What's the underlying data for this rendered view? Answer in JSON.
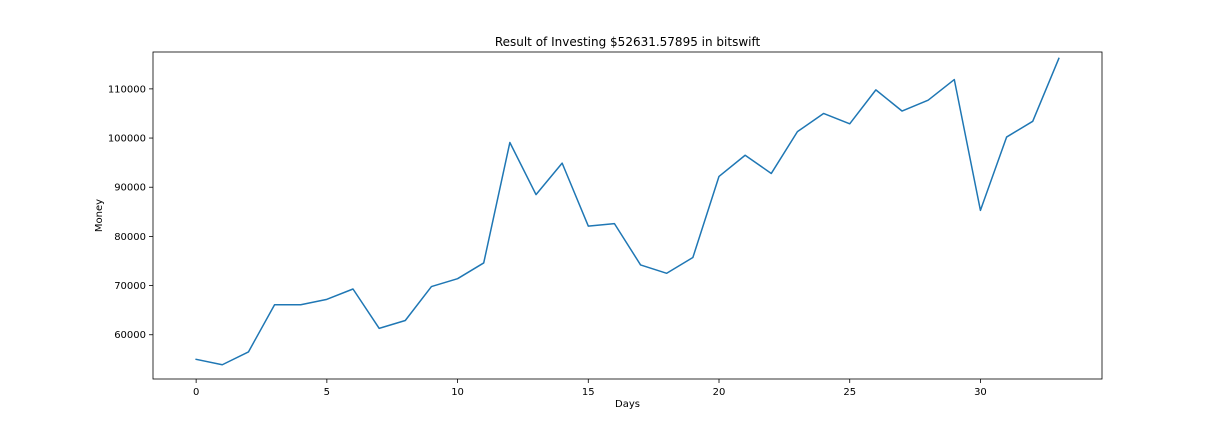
{
  "chart_data": {
    "type": "line",
    "title": "Result of Investing $52631.57895 in bitswift",
    "xlabel": "Days",
    "ylabel": "Money",
    "xlim": [
      -1.65,
      34.65
    ],
    "ylim": [
      51000,
      117500
    ],
    "xticks": [
      0,
      5,
      10,
      15,
      20,
      25,
      30
    ],
    "yticks": [
      60000,
      70000,
      80000,
      90000,
      100000,
      110000
    ],
    "grid": false,
    "color": "#1f77b4",
    "series": [
      {
        "x": [
          0,
          1,
          2,
          3,
          4,
          5,
          6,
          7,
          8,
          9,
          10,
          11,
          12,
          13,
          14,
          15,
          16,
          17,
          18,
          19,
          20,
          21,
          22,
          23,
          24,
          25,
          26,
          27,
          28,
          29,
          30,
          31,
          32,
          33
        ],
        "values": [
          55000,
          53900,
          56500,
          66100,
          66100,
          67200,
          69300,
          61300,
          62900,
          69800,
          71400,
          74600,
          99100,
          88500,
          94900,
          82100,
          82600,
          74200,
          72500,
          75700,
          92200,
          96500,
          92800,
          101300,
          105000,
          102900,
          109800,
          105500,
          107700,
          111900,
          85300,
          100200,
          103400,
          116200
        ]
      }
    ]
  }
}
